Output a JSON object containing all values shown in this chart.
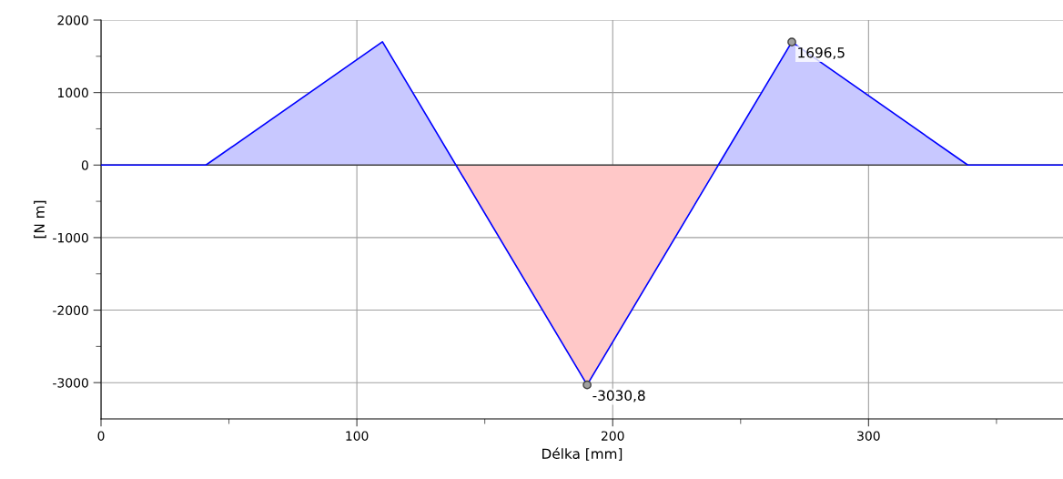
{
  "chart_data": {
    "type": "area",
    "xlabel": "Délka [mm]",
    "ylabel": "[N m]",
    "series": [
      {
        "color": "#c8c8ff",
        "x": [
          0,
          41,
          110,
          138.6
        ],
        "values": [
          0,
          0,
          1700,
          0
        ]
      },
      {
        "color": "#ffc8c8",
        "x": [
          138.6,
          190,
          240.8
        ],
        "values": [
          0,
          -3030.8,
          0
        ]
      },
      {
        "color": "#c8c8ff",
        "x": [
          240.8,
          270,
          338.8,
          376
        ],
        "values": [
          0,
          1696.5,
          0,
          0
        ]
      },
      {
        "type": "line",
        "color": "#0000ff",
        "x": [
          0,
          41,
          110,
          190,
          270,
          338.8,
          376
        ],
        "values": [
          0,
          0,
          1700,
          -3030.8,
          1696.5,
          0,
          0
        ]
      }
    ],
    "xlim": [
      0,
      376
    ],
    "ylim": [
      -3500,
      2000
    ],
    "xticks": [
      0,
      {
        "value": 50,
        "label": null
      },
      100,
      {
        "value": 150,
        "label": null
      },
      200,
      {
        "value": 250,
        "label": null
      },
      300,
      {
        "value": 350,
        "label": null
      }
    ],
    "yticks": [
      -3000,
      {
        "value": -2500,
        "label": null
      },
      -2000,
      {
        "value": -1500,
        "label": null
      },
      -1000,
      {
        "value": -500,
        "label": null
      },
      0,
      {
        "value": 500,
        "label": null
      },
      1000,
      {
        "value": 1500,
        "label": null
      },
      2000
    ],
    "grid": true,
    "marker": "none",
    "line_style": "solid",
    "ref_lines": [
      {
        "axis": "y",
        "value": 0,
        "color": "#404040"
      }
    ],
    "annotations": [
      {
        "text": "1696,5",
        "x": 270,
        "y": 1696.5
      },
      {
        "text": "-3030,8",
        "x": 190,
        "y": -3030.8
      }
    ]
  }
}
